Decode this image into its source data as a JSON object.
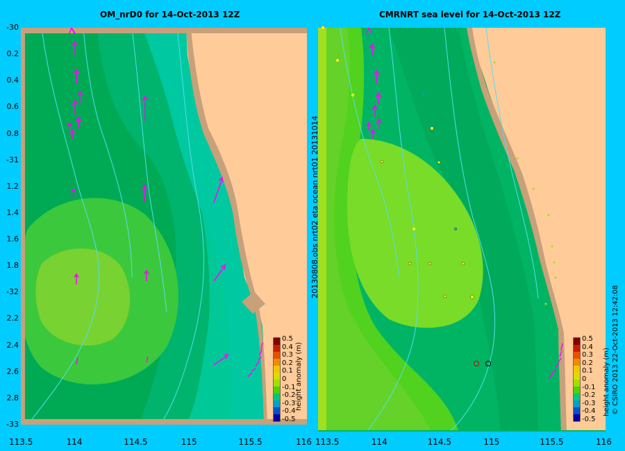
{
  "left_map": {
    "title": "OM_nrD0  for 14-Oct-2013 12Z"
  },
  "right_map": {
    "title": "CMRNRT sea level  for 14-Oct-2013 12Z"
  },
  "lat_labels": [
    "-30",
    "0.2",
    "0.4",
    "0.6",
    "0.8",
    "-31",
    "1.2",
    "1.4",
    "1.6",
    "1.8",
    "-32",
    "2.2",
    "2.4",
    "2.6",
    "2.8",
    "-33"
  ],
  "left_lon_labels": [
    "113.5",
    "114",
    "114.5",
    "115",
    "115.5",
    "116"
  ],
  "right_lon_labels": [
    "113.5",
    "114",
    "114.5",
    "115",
    "115.5",
    "116"
  ],
  "right_side_text": "20130808.obs  nrt02  eta          ocean  nrt01  20131014",
  "far_right_text": "© CSIRO 2013   22-Oct-2013 12:42:08",
  "colorbar": {
    "labels": [
      "0.5",
      "0.4",
      "0.3",
      "0.2",
      "0.1",
      "0",
      "-0.1",
      "-0.2",
      "-0.3",
      "-0.4",
      "-0.5"
    ],
    "unit_label": "height anomaly (m)",
    "colors": [
      "#800000",
      "#c81e00",
      "#e85000",
      "#f08c00",
      "#f0c800",
      "#dcdc00",
      "#a0e000",
      "#50d200",
      "#00c878",
      "#00a0c8",
      "#0050d2",
      "#0000a0"
    ]
  },
  "colors": {
    "background": "#00ccff",
    "land": "#ffcc99",
    "coast": "#c8a07a",
    "vector": "#ff00ff",
    "bathymetry": "#55ddee"
  }
}
